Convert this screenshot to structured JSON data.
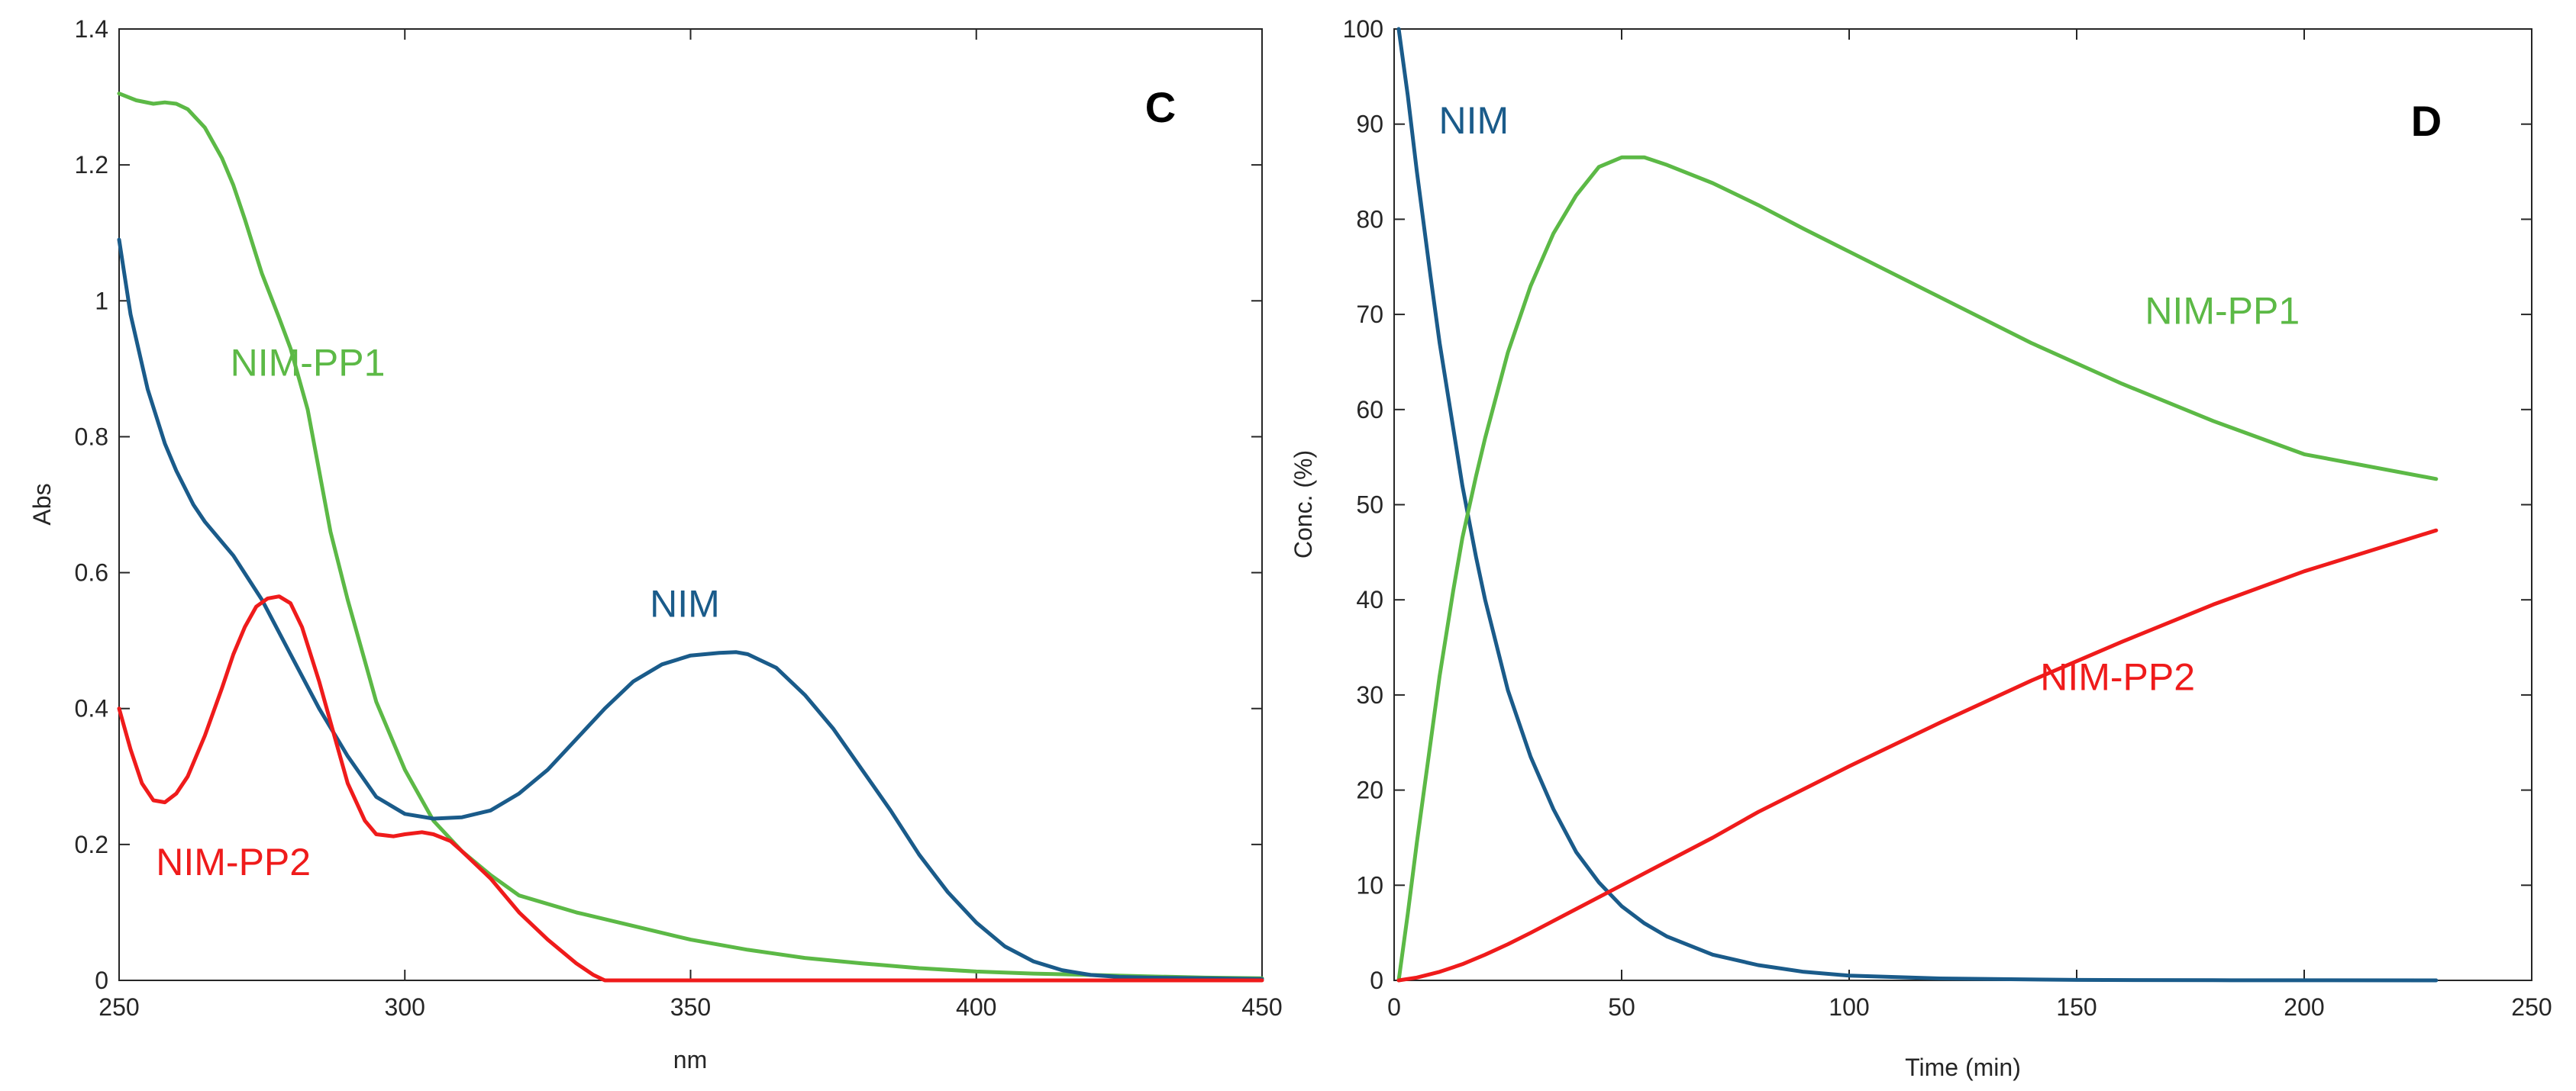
{
  "chart_data": [
    {
      "type": "line",
      "panel_label": "C",
      "xlabel": "nm",
      "ylabel": "Abs",
      "xlim": [
        250,
        450
      ],
      "ylim": [
        0,
        1.4
      ],
      "xticks": [
        250,
        300,
        350,
        400,
        450
      ],
      "yticks": [
        0,
        0.2,
        0.4,
        0.6,
        0.8,
        1,
        1.2,
        1.4
      ],
      "grid": false,
      "series": [
        {
          "name": "NIM-PP1",
          "color": "#5cb946",
          "x": [
            250,
            253,
            256,
            258,
            260,
            262,
            265,
            268,
            270,
            272,
            275,
            278,
            280,
            283,
            285,
            287,
            290,
            293,
            295,
            298,
            300,
            305,
            310,
            315,
            320,
            330,
            340,
            350,
            360,
            370,
            380,
            390,
            400,
            410,
            420,
            430,
            440,
            450
          ],
          "y": [
            1.305,
            1.295,
            1.29,
            1.292,
            1.29,
            1.282,
            1.255,
            1.21,
            1.17,
            1.12,
            1.04,
            0.975,
            0.93,
            0.84,
            0.75,
            0.66,
            0.56,
            0.47,
            0.41,
            0.35,
            0.31,
            0.235,
            0.19,
            0.155,
            0.125,
            0.1,
            0.08,
            0.06,
            0.045,
            0.033,
            0.025,
            0.018,
            0.013,
            0.01,
            0.008,
            0.006,
            0.004,
            0.003
          ]
        },
        {
          "name": "NIM",
          "color": "#1a5b8a",
          "x": [
            250,
            252,
            255,
            258,
            260,
            263,
            265,
            268,
            270,
            275,
            280,
            285,
            290,
            295,
            300,
            305,
            310,
            315,
            320,
            325,
            330,
            335,
            340,
            345,
            350,
            355,
            358,
            360,
            365,
            370,
            375,
            380,
            385,
            390,
            395,
            400,
            405,
            410,
            415,
            420,
            425,
            430,
            440,
            450
          ],
          "y": [
            1.09,
            0.98,
            0.87,
            0.79,
            0.75,
            0.7,
            0.675,
            0.645,
            0.625,
            0.56,
            0.48,
            0.4,
            0.33,
            0.27,
            0.245,
            0.238,
            0.24,
            0.25,
            0.275,
            0.31,
            0.355,
            0.4,
            0.44,
            0.465,
            0.478,
            0.482,
            0.483,
            0.48,
            0.46,
            0.42,
            0.37,
            0.31,
            0.25,
            0.185,
            0.13,
            0.085,
            0.05,
            0.028,
            0.015,
            0.008,
            0.005,
            0.004,
            0.003,
            0.002
          ]
        },
        {
          "name": "NIM-PP2",
          "color": "#ef1b1b",
          "x": [
            250,
            252,
            254,
            256,
            258,
            260,
            262,
            265,
            268,
            270,
            272,
            274,
            276,
            278,
            280,
            282,
            285,
            288,
            290,
            293,
            295,
            298,
            300,
            303,
            305,
            308,
            310,
            315,
            320,
            325,
            330,
            333,
            335,
            340,
            350,
            360,
            380,
            400,
            420,
            450
          ],
          "y": [
            0.4,
            0.34,
            0.29,
            0.265,
            0.262,
            0.275,
            0.3,
            0.36,
            0.43,
            0.48,
            0.52,
            0.55,
            0.562,
            0.565,
            0.555,
            0.52,
            0.44,
            0.35,
            0.29,
            0.235,
            0.215,
            0.212,
            0.215,
            0.218,
            0.215,
            0.205,
            0.19,
            0.15,
            0.1,
            0.06,
            0.025,
            0.008,
            0.0,
            0.0,
            0.0,
            0.0,
            0.0,
            0.0,
            0.0,
            0.0
          ]
        }
      ],
      "annotations": [
        {
          "text": "NIM-PP1",
          "x": 283,
          "y": 0.89,
          "color": "#5cb946"
        },
        {
          "text": "NIM",
          "x": 349,
          "y": 0.535,
          "color": "#1a5b8a"
        },
        {
          "text": "NIM-PP2",
          "x": 270,
          "y": 0.155,
          "color": "#ef1b1b"
        }
      ]
    },
    {
      "type": "line",
      "panel_label": "D",
      "xlabel": "Time (min)",
      "ylabel": "Conc. (%)",
      "xlim": [
        0,
        250
      ],
      "ylim": [
        0,
        100
      ],
      "xticks": [
        0,
        50,
        100,
        150,
        200,
        250
      ],
      "yticks": [
        0,
        10,
        20,
        30,
        40,
        50,
        60,
        70,
        80,
        90,
        100
      ],
      "grid": false,
      "series": [
        {
          "name": "NIM",
          "color": "#1a5b8a",
          "x": [
            1,
            3,
            5,
            8,
            10,
            13,
            15,
            18,
            20,
            25,
            30,
            35,
            40,
            45,
            50,
            55,
            60,
            70,
            80,
            90,
            100,
            120,
            150,
            180,
            200,
            229
          ],
          "y": [
            100,
            93,
            85,
            74,
            67,
            58,
            52,
            44.5,
            40,
            30.5,
            23.5,
            18,
            13.5,
            10.3,
            7.8,
            6.0,
            4.6,
            2.7,
            1.6,
            0.9,
            0.5,
            0.2,
            0.05,
            0.02,
            0.01,
            0.0
          ]
        },
        {
          "name": "NIM-PP1",
          "color": "#5cb946",
          "x": [
            1,
            3,
            5,
            8,
            10,
            13,
            15,
            18,
            20,
            25,
            30,
            35,
            40,
            45,
            50,
            55,
            60,
            70,
            80,
            90,
            100,
            120,
            140,
            160,
            180,
            200,
            229
          ],
          "y": [
            0,
            7,
            14.5,
            25,
            32,
            41,
            46.5,
            53,
            57,
            66,
            73,
            78.5,
            82.5,
            85.5,
            86.5,
            86.5,
            85.7,
            83.8,
            81.5,
            79,
            76.6,
            71.8,
            67,
            62.7,
            58.8,
            55.3,
            52.7
          ]
        },
        {
          "name": "NIM-PP2",
          "color": "#ef1b1b",
          "x": [
            1,
            5,
            10,
            15,
            20,
            25,
            30,
            40,
            50,
            60,
            70,
            80,
            90,
            100,
            120,
            140,
            160,
            180,
            200,
            229
          ],
          "y": [
            0,
            0.3,
            0.9,
            1.7,
            2.7,
            3.8,
            5.0,
            7.5,
            10.0,
            12.5,
            15.0,
            17.7,
            20.1,
            22.5,
            27.1,
            31.5,
            35.6,
            39.5,
            43.0,
            47.3
          ]
        }
      ],
      "annotations": [
        {
          "text": "NIM",
          "x": 17.5,
          "y": 89,
          "color": "#1a5b8a"
        },
        {
          "text": "NIM-PP1",
          "x": 182,
          "y": 69,
          "color": "#5cb946"
        },
        {
          "text": "NIM-PP2",
          "x": 159,
          "y": 30.5,
          "color": "#ef1b1b"
        }
      ]
    }
  ]
}
